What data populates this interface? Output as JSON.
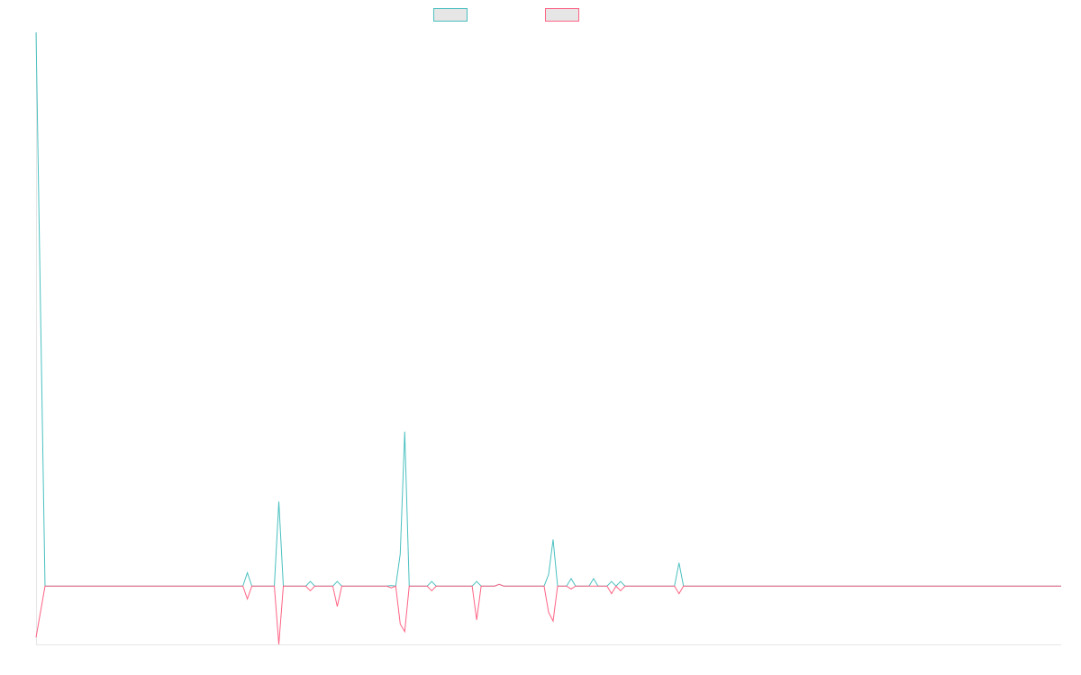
{
  "chart_data": {
    "type": "line",
    "title": "",
    "xlabel": "",
    "ylabel": "",
    "grid": false,
    "legend_placement": "top-center",
    "x_count": 115,
    "baseline": 0,
    "ylim": [
      -10,
      95
    ],
    "series": [
      {
        "name": "",
        "color": "#4bc0c0",
        "fill": "#e6e6e6",
        "points": [
          [
            0,
            95
          ],
          [
            1,
            0
          ],
          [
            23,
            0
          ],
          [
            23.5,
            2.3
          ],
          [
            24,
            0
          ],
          [
            26.5,
            0
          ],
          [
            27,
            14.5
          ],
          [
            27.5,
            0
          ],
          [
            30,
            0
          ],
          [
            30.5,
            0.8
          ],
          [
            31,
            0
          ],
          [
            33,
            0
          ],
          [
            33.5,
            0.8
          ],
          [
            34,
            0
          ],
          [
            39,
            0
          ],
          [
            39.5,
            0.1
          ],
          [
            40,
            0
          ],
          [
            40.5,
            5.5
          ],
          [
            41,
            26.5
          ],
          [
            41.5,
            0
          ],
          [
            43.5,
            0
          ],
          [
            44,
            0.8
          ],
          [
            44.5,
            0
          ],
          [
            48.5,
            0
          ],
          [
            49,
            0.8
          ],
          [
            49.5,
            0
          ],
          [
            51,
            0
          ],
          [
            51.5,
            0.3
          ],
          [
            52,
            0
          ],
          [
            56.5,
            0
          ],
          [
            57,
            2
          ],
          [
            57.5,
            8
          ],
          [
            58,
            0
          ],
          [
            59,
            0
          ],
          [
            59.5,
            1.3
          ],
          [
            60,
            0
          ],
          [
            61.5,
            0
          ],
          [
            62,
            1.3
          ],
          [
            62.5,
            0
          ],
          [
            63.5,
            0
          ],
          [
            64,
            0.8
          ],
          [
            64.5,
            0
          ],
          [
            64.5,
            0
          ],
          [
            65,
            0.8
          ],
          [
            65.5,
            0
          ],
          [
            71,
            0
          ],
          [
            71.5,
            4
          ],
          [
            72,
            0
          ],
          [
            114,
            0
          ]
        ]
      },
      {
        "name": "",
        "color": "#ff6384",
        "fill": "#e6e6e6",
        "points": [
          [
            0,
            -8.8
          ],
          [
            1,
            0
          ],
          [
            23,
            0
          ],
          [
            23.5,
            -2.2
          ],
          [
            24,
            0
          ],
          [
            26.5,
            0
          ],
          [
            27,
            -10
          ],
          [
            27.5,
            0
          ],
          [
            30,
            0
          ],
          [
            30.5,
            -0.8
          ],
          [
            31,
            0
          ],
          [
            33,
            0
          ],
          [
            33.5,
            -3.5
          ],
          [
            34,
            0
          ],
          [
            39,
            0
          ],
          [
            39.5,
            -0.3
          ],
          [
            40,
            0
          ],
          [
            40.5,
            -6.5
          ],
          [
            41,
            -7.8
          ],
          [
            41.5,
            0
          ],
          [
            43.5,
            0
          ],
          [
            44,
            -0.8
          ],
          [
            44.5,
            0
          ],
          [
            48.5,
            0
          ],
          [
            49,
            -5.8
          ],
          [
            49.5,
            0
          ],
          [
            51,
            0
          ],
          [
            51.5,
            0.3
          ],
          [
            52,
            0
          ],
          [
            56.5,
            0
          ],
          [
            57,
            -4.5
          ],
          [
            57.5,
            -6
          ],
          [
            58,
            0
          ],
          [
            59,
            0
          ],
          [
            59.5,
            -0.5
          ],
          [
            60,
            0
          ],
          [
            63.5,
            0
          ],
          [
            64,
            -1.3
          ],
          [
            64.5,
            0
          ],
          [
            65,
            -0.8
          ],
          [
            65.5,
            0
          ],
          [
            71,
            0
          ],
          [
            71.5,
            -1.3
          ],
          [
            72,
            0
          ],
          [
            114,
            0
          ]
        ]
      }
    ]
  }
}
